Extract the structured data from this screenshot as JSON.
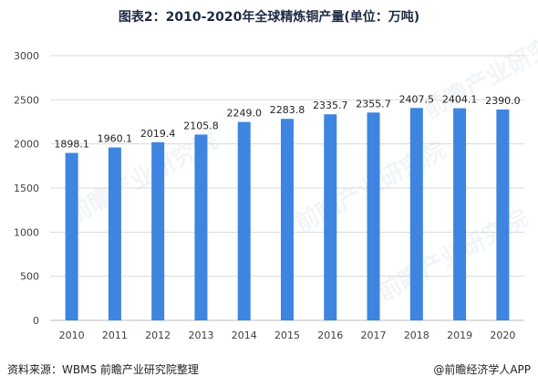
{
  "title": "图表2：2010-2020年全球精炼铜产量(单位：万吨)",
  "chart_data": {
    "type": "bar",
    "title": "图表2：2010-2020年全球精炼铜产量(单位：万吨)",
    "categories": [
      "2010",
      "2011",
      "2012",
      "2013",
      "2014",
      "2015",
      "2016",
      "2017",
      "2018",
      "2019",
      "2020"
    ],
    "values": [
      1898.1,
      1960.1,
      2019.4,
      2105.8,
      2249.0,
      2283.8,
      2335.7,
      2355.7,
      2407.5,
      2404.1,
      2390.0
    ],
    "value_labels": [
      "1898.1",
      "1960.1",
      "2019.4",
      "2105.8",
      "2249.0",
      "2283.8",
      "2335.7",
      "2355.7",
      "2407.5",
      "2404.1",
      "2390.0"
    ],
    "y_ticks": [
      0,
      500,
      1000,
      1500,
      2000,
      2500,
      3000
    ],
    "ylim": [
      0,
      3000
    ],
    "xlabel": "",
    "ylabel": "",
    "grid": true,
    "bar_color": "#3d85e0"
  },
  "footer": {
    "source": "资料来源：WBMS 前瞻产业研究院整理",
    "brand": "@前瞻经济学人APP"
  },
  "watermark": {
    "text": "前瞻产业研究院"
  }
}
